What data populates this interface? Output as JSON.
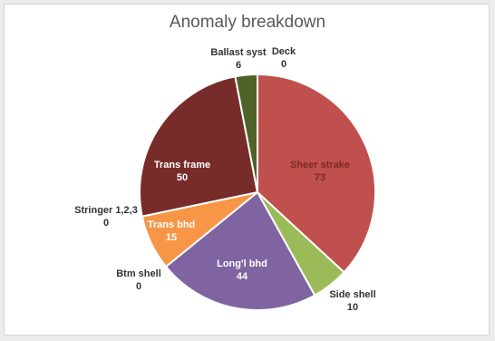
{
  "chart_data": {
    "type": "pie",
    "title": "Anomaly breakdown",
    "slices": [
      {
        "label": "Sheer strake",
        "value": 73,
        "color": "#c0504d",
        "text_color": "#7a2a28"
      },
      {
        "label": "Side shell",
        "value": 10,
        "color": "#9bbb59",
        "text_color": "#333333"
      },
      {
        "label": "Btm shell",
        "value": 0,
        "color": "#4f81bd",
        "text_color": "#333333"
      },
      {
        "label": "Long'l bhd",
        "value": 44,
        "color": "#8064a2",
        "text_color": "#ffffff"
      },
      {
        "label": "Trans bhd",
        "value": 15,
        "color": "#f79646",
        "text_color": "#ffffff"
      },
      {
        "label": "Stringer 1,2,3",
        "value": 0,
        "color": "#4bacc6",
        "text_color": "#333333"
      },
      {
        "label": "Trans frame",
        "value": 50,
        "color": "#772c2a",
        "text_color": "#ffffff"
      },
      {
        "label": "Ballast syst",
        "value": 6,
        "color": "#4f6228",
        "text_color": "#333333"
      },
      {
        "label": "Deck",
        "value": 0,
        "color": "#2c4d75",
        "text_color": "#333333"
      }
    ],
    "legend": "none",
    "start_angle_deg": 0,
    "direction": "clockwise"
  }
}
